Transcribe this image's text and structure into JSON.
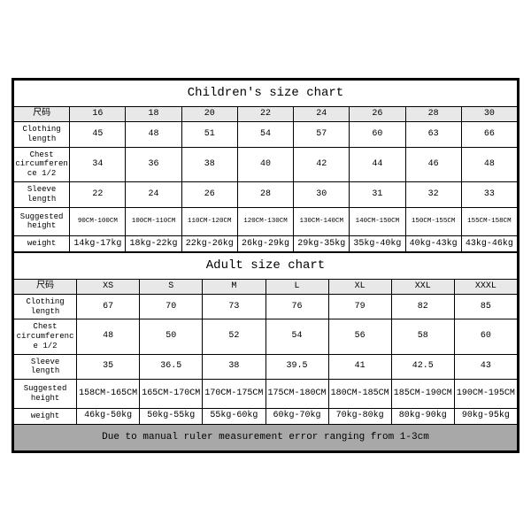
{
  "children": {
    "title": "Children's size chart",
    "size_label": "尺码",
    "sizes": [
      "16",
      "18",
      "20",
      "22",
      "24",
      "26",
      "28",
      "30"
    ],
    "rows": [
      {
        "label": "Clothing length",
        "vals": [
          "45",
          "48",
          "51",
          "54",
          "57",
          "60",
          "63",
          "66"
        ]
      },
      {
        "label": "Chest circumference 1/2",
        "vals": [
          "34",
          "36",
          "38",
          "40",
          "42",
          "44",
          "46",
          "48"
        ]
      },
      {
        "label": "Sleeve length",
        "vals": [
          "22",
          "24",
          "26",
          "28",
          "30",
          "31",
          "32",
          "33"
        ]
      },
      {
        "label": "Suggested height",
        "vals": [
          "90CM-100CM",
          "100CM-110CM",
          "110CM-120CM",
          "120CM-130CM",
          "130CM-140CM",
          "140CM-150CM",
          "150CM-155CM",
          "155CM-158CM"
        ],
        "small": true
      },
      {
        "label": "weight",
        "vals": [
          "14kg-17kg",
          "18kg-22kg",
          "22kg-26kg",
          "26kg-29kg",
          "29kg-35kg",
          "35kg-40kg",
          "40kg-43kg",
          "43kg-46kg"
        ]
      }
    ]
  },
  "adult": {
    "title": "Adult size chart",
    "size_label": "尺码",
    "sizes": [
      "XS",
      "S",
      "M",
      "L",
      "XL",
      "XXL",
      "XXXL"
    ],
    "rows": [
      {
        "label": "Clothing length",
        "vals": [
          "67",
          "70",
          "73",
          "76",
          "79",
          "82",
          "85"
        ]
      },
      {
        "label": "Chest circumference 1/2",
        "vals": [
          "48",
          "50",
          "52",
          "54",
          "56",
          "58",
          "60"
        ]
      },
      {
        "label": "Sleeve length",
        "vals": [
          "35",
          "36.5",
          "38",
          "39.5",
          "41",
          "42.5",
          "43"
        ]
      },
      {
        "label": "Suggested height",
        "vals": [
          "158CM-165CM",
          "165CM-170CM",
          "170CM-175CM",
          "175CM-180CM",
          "180CM-185CM",
          "185CM-190CM",
          "190CM-195CM"
        ]
      },
      {
        "label": "weight",
        "vals": [
          "46kg-50kg",
          "50kg-55kg",
          "55kg-60kg",
          "60kg-70kg",
          "70kg-80kg",
          "80kg-90kg",
          "90kg-95kg"
        ]
      }
    ]
  },
  "footer": "Due to manual ruler measurement error ranging from 1-3cm",
  "colors": {
    "header_bg": "#e8e8e8",
    "footer_bg": "#a8a8a8",
    "border": "#000000",
    "page_bg": "#ffffff"
  },
  "font_family": "Courier New"
}
